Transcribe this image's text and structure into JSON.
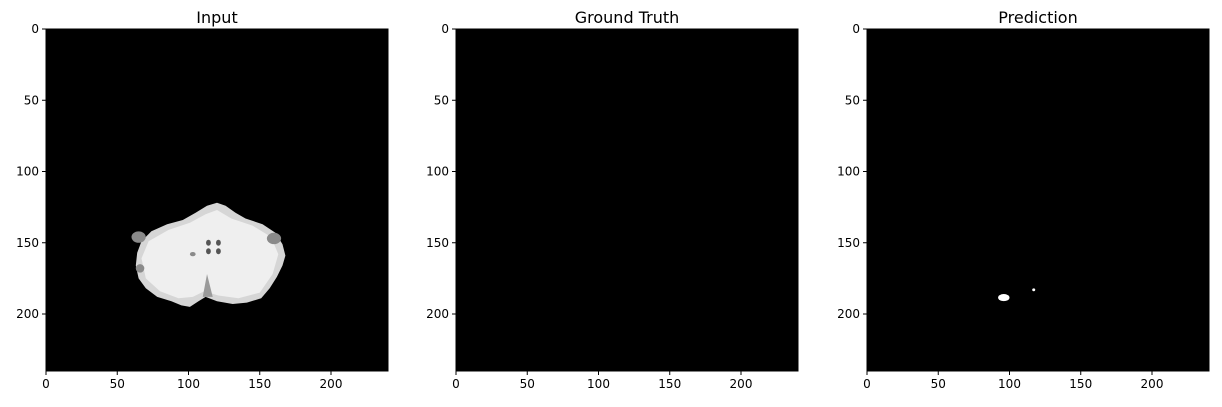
{
  "chart_data": [
    {
      "type": "heatmap",
      "title": "Input",
      "xlabel": "",
      "ylabel": "",
      "xlim": [
        0,
        240
      ],
      "ylim": [
        240,
        0
      ],
      "xticks": [
        0,
        50,
        100,
        150,
        200
      ],
      "yticks": [
        0,
        50,
        100,
        150,
        200
      ],
      "colormap": "gray",
      "background": "#000000",
      "content": "brain-slice",
      "grid": false
    },
    {
      "type": "heatmap",
      "title": "Ground Truth",
      "xlabel": "",
      "ylabel": "",
      "xlim": [
        0,
        240
      ],
      "ylim": [
        240,
        0
      ],
      "xticks": [
        0,
        50,
        100,
        150,
        200
      ],
      "yticks": [
        0,
        50,
        100,
        150,
        200
      ],
      "colormap": "gray",
      "background": "#000000",
      "content": "empty",
      "grid": false
    },
    {
      "type": "heatmap",
      "title": "Prediction",
      "xlabel": "",
      "ylabel": "",
      "xlim": [
        0,
        240
      ],
      "ylim": [
        240,
        0
      ],
      "xticks": [
        0,
        50,
        100,
        150,
        200
      ],
      "yticks": [
        0,
        50,
        100,
        150,
        200
      ],
      "colormap": "gray",
      "background": "#000000",
      "content": "blobs",
      "blobs": [
        {
          "x": [
            92,
            100
          ],
          "y": [
            186,
            191
          ]
        },
        {
          "x": [
            116,
            118
          ],
          "y": [
            182,
            184
          ]
        }
      ],
      "grid": false
    }
  ]
}
